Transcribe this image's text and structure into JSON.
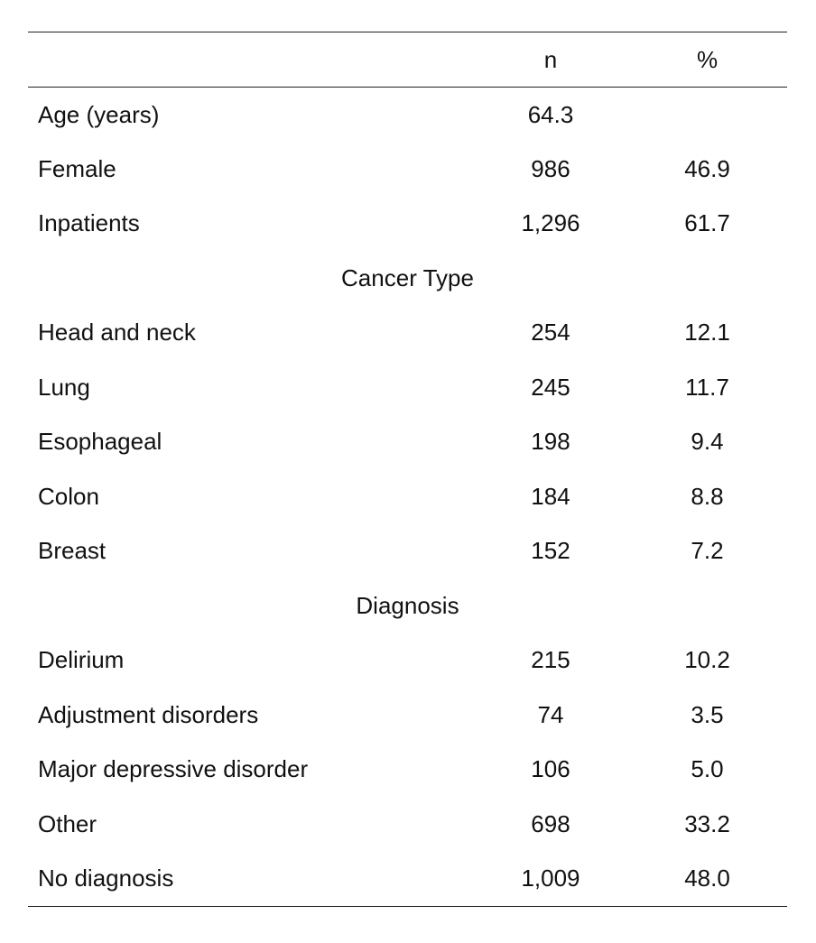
{
  "table": {
    "headers": [
      "",
      "n",
      "%"
    ],
    "rows": [
      {
        "type": "data",
        "label": "Age (years)",
        "n": "64.3",
        "pct": ""
      },
      {
        "type": "data",
        "label": "Female",
        "n": "986",
        "pct": "46.9"
      },
      {
        "type": "data",
        "label": "Inpatients",
        "n": "1,296",
        "pct": "61.7"
      },
      {
        "type": "section",
        "label": "Cancer Type"
      },
      {
        "type": "data",
        "label": "Head and neck",
        "n": "254",
        "pct": "12.1"
      },
      {
        "type": "data",
        "label": "Lung",
        "n": "245",
        "pct": "11.7"
      },
      {
        "type": "data",
        "label": "Esophageal",
        "n": "198",
        "pct": "9.4"
      },
      {
        "type": "data",
        "label": "Colon",
        "n": "184",
        "pct": "8.8"
      },
      {
        "type": "data",
        "label": "Breast",
        "n": "152",
        "pct": "7.2"
      },
      {
        "type": "section",
        "label": "Diagnosis"
      },
      {
        "type": "data",
        "label": "Delirium",
        "n": "215",
        "pct": "10.2"
      },
      {
        "type": "data",
        "label": "Adjustment disorders",
        "n": "74",
        "pct": "3.5"
      },
      {
        "type": "data",
        "label": "Major depressive disorder",
        "n": "106",
        "pct": "5.0"
      },
      {
        "type": "data",
        "label": "Other",
        "n": "698",
        "pct": "33.2"
      },
      {
        "type": "data",
        "label": "No diagnosis",
        "n": "1,009",
        "pct": "48.0"
      }
    ]
  }
}
